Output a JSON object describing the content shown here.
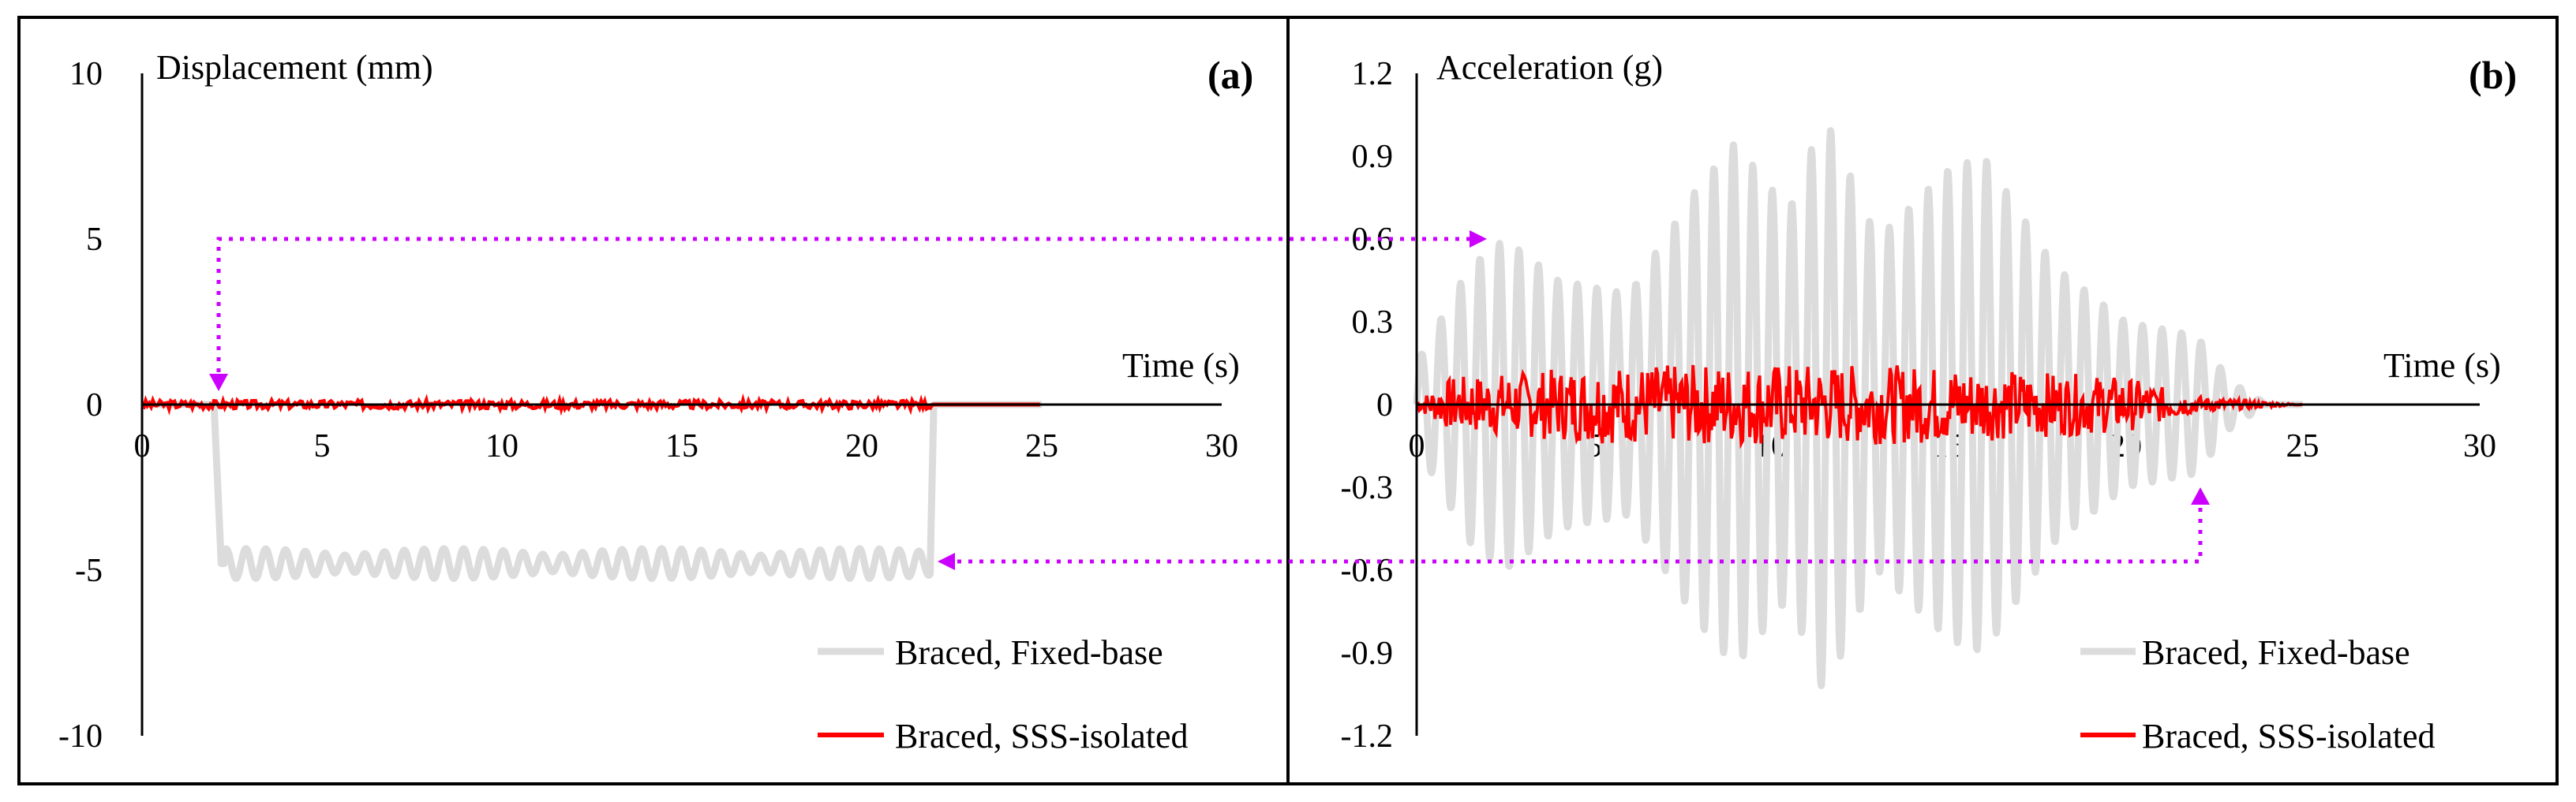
{
  "chart_data": [
    {
      "panel_label": "(a)",
      "type": "line",
      "ylabel": "Displacement (mm)",
      "xlabel": "Time (s)",
      "x_ticks": [
        "0",
        "5",
        "10",
        "15",
        "20",
        "25",
        "30"
      ],
      "y_ticks": [
        "10",
        "5",
        "0",
        "-5",
        "-10"
      ],
      "xlim": [
        0,
        30
      ],
      "ylim": [
        -10,
        10
      ],
      "grid": false,
      "legend_position": "bottom-right",
      "series": [
        {
          "name": "Braced, Fixed-base",
          "color": "#dcdcdc",
          "description": "step to about -4.8 mm at ~2.2 s, oscillating around -4.8 mm with amplitude up to ~0.8 mm until ~22 s, then returns to 0",
          "points": [
            [
              0,
              0
            ],
            [
              2.0,
              0
            ],
            [
              2.2,
              -4.8
            ],
            [
              5,
              -4.8
            ],
            [
              9.5,
              -4.8
            ],
            [
              12,
              -4.8
            ],
            [
              16,
              -4.8
            ],
            [
              21.9,
              -4.8
            ],
            [
              22.0,
              0
            ],
            [
              25,
              0
            ]
          ],
          "osc_amp": 0.45,
          "osc_period": 0.55
        },
        {
          "name": "Braced, SSS-isolated",
          "color": "#ff0000",
          "description": "near-zero displacement throughout, small noise up to about 0.15 mm",
          "points": [
            [
              0,
              0
            ],
            [
              25,
              0
            ]
          ],
          "noise_amp": 0.12
        }
      ],
      "annotation": "dotted magenta arrows link the fixed-base step at ~2.2 s and the return at ~22 s to acceleration panel (b)"
    },
    {
      "panel_label": "(b)",
      "type": "line",
      "ylabel": "Acceleration (g)",
      "xlabel": "Time (s)",
      "x_ticks": [
        "0",
        "5",
        "10",
        "15",
        "20",
        "25",
        "30"
      ],
      "y_ticks": [
        "1.2",
        "0.9",
        "0.6",
        "0.3",
        "0",
        "-0.3",
        "-0.6",
        "-0.9",
        "-1.2"
      ],
      "xlim": [
        0,
        30
      ],
      "ylim": [
        -1.2,
        1.2
      ],
      "grid": false,
      "legend_position": "bottom-right",
      "series": [
        {
          "name": "Braced, Fixed-base",
          "color": "#dcdcdc",
          "description": "oscillating acceleration, peaks around +0.95 g near 9 s and -1.05 g near 11.5 s, decaying after 20 s to zero by ~24 s",
          "envelope": [
            [
              0,
              0.15
            ],
            [
              1.5,
              0.5
            ],
            [
              2.5,
              0.6
            ],
            [
              4,
              0.45
            ],
            [
              6,
              0.4
            ],
            [
              8,
              0.8
            ],
            [
              9,
              0.95
            ],
            [
              10.5,
              0.7
            ],
            [
              11.5,
              1.05
            ],
            [
              13,
              0.6
            ],
            [
              15,
              0.85
            ],
            [
              16,
              0.9
            ],
            [
              18,
              0.5
            ],
            [
              20,
              0.3
            ],
            [
              22,
              0.25
            ],
            [
              23,
              0.08
            ],
            [
              24,
              0
            ]
          ],
          "osc_period": 0.55
        },
        {
          "name": "Braced, SSS-isolated",
          "color": "#ff0000",
          "description": "noisy acceleration up to about +/-0.15 g from 0 to ~22 s, near zero afterwards",
          "envelope": [
            [
              0,
              0.02
            ],
            [
              1,
              0.1
            ],
            [
              5,
              0.14
            ],
            [
              10,
              0.15
            ],
            [
              15,
              0.14
            ],
            [
              20,
              0.1
            ],
            [
              22,
              0.03
            ],
            [
              25,
              0
            ]
          ],
          "noise_seed": 7
        }
      ],
      "annotation": "dotted magenta arrows point to the fixed-base response at ~2 s (0.6 g) and ~22 s (-0.6 g) as references from panel (a)"
    }
  ],
  "colors": {
    "fixed_base": "#dcdcdc",
    "sss_isolated": "#ff0000",
    "annotation_arrow": "#cc00ff",
    "frame": "#000000"
  }
}
